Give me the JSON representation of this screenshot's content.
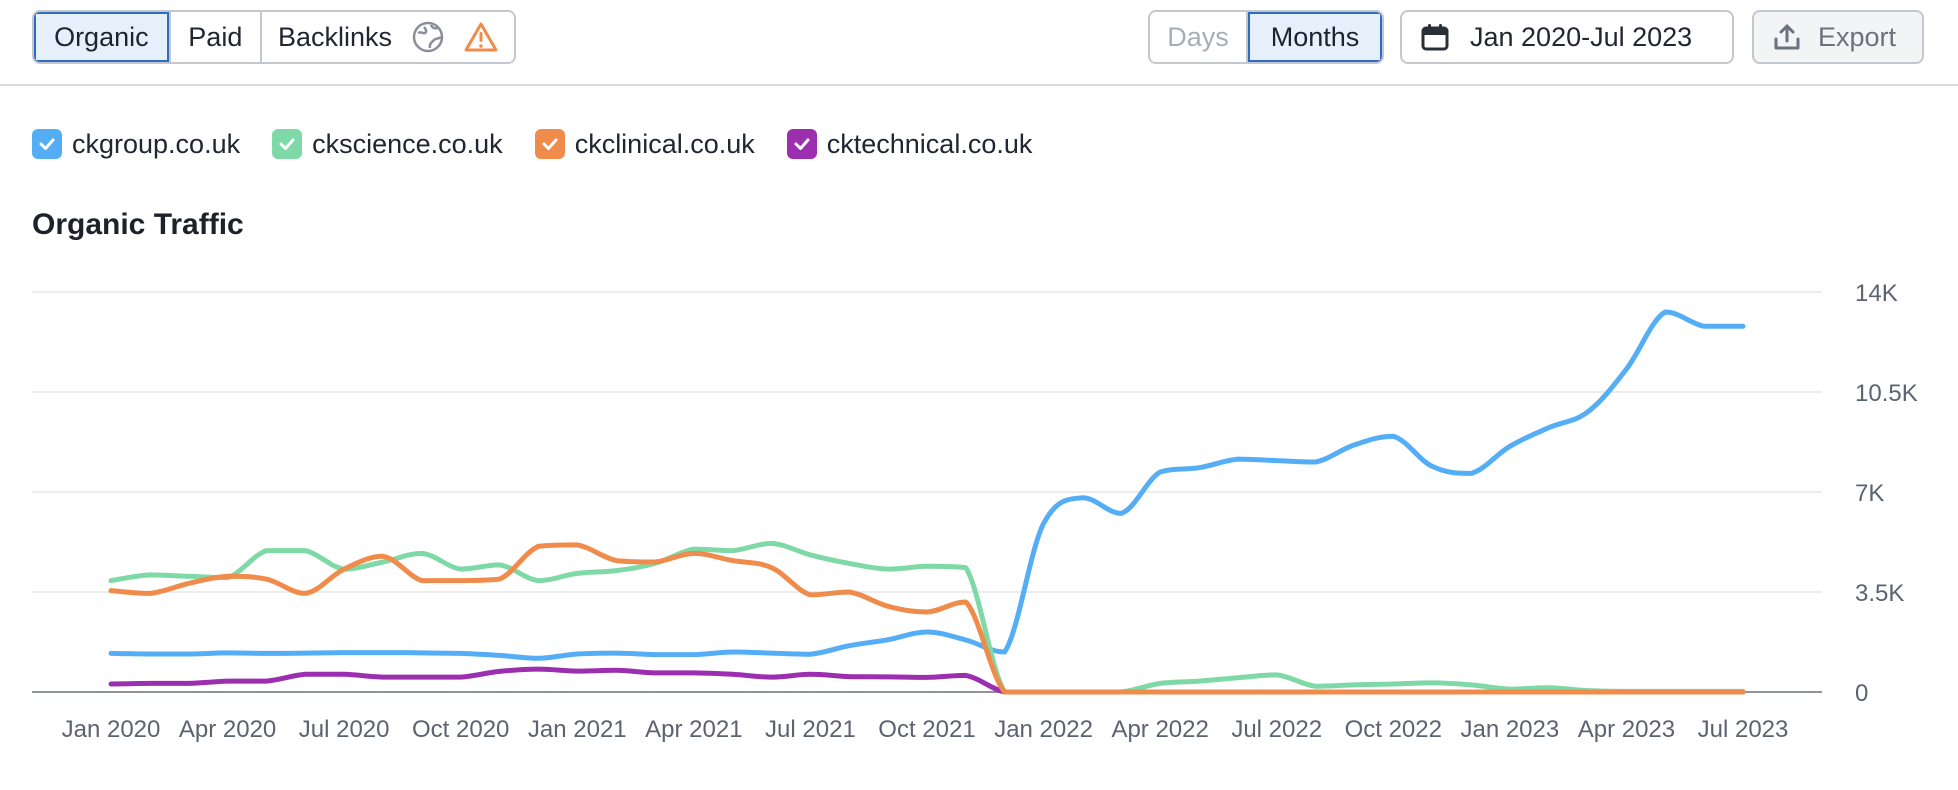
{
  "toolbar": {
    "tabs": [
      {
        "label": "Organic",
        "active": true
      },
      {
        "label": "Paid",
        "active": false
      },
      {
        "label": "Backlinks",
        "active": false
      }
    ],
    "backlinks_icons": [
      "globe-icon",
      "warning-icon"
    ],
    "period": [
      {
        "label": "Days",
        "active": false,
        "disabled": true
      },
      {
        "label": "Months",
        "active": true,
        "disabled": false
      }
    ],
    "date_range": "Jan 2020-Jul 2023",
    "export_label": "Export"
  },
  "legend": [
    {
      "domain": "ckgroup.co.uk",
      "color": "#55aef5",
      "checked": true
    },
    {
      "domain": "ckscience.co.uk",
      "color": "#7fd9a6",
      "checked": true
    },
    {
      "domain": "ckclinical.co.uk",
      "color": "#f08c4b",
      "checked": true
    },
    {
      "domain": "cktechnical.co.uk",
      "color": "#9c2eb0",
      "checked": true
    }
  ],
  "chart_title": "Organic Traffic",
  "chart_data": {
    "type": "line",
    "title": "Organic Traffic",
    "xlabel": "",
    "ylabel": "",
    "ylim": [
      0,
      14000
    ],
    "y_ticks": [
      0,
      3500,
      7000,
      10500,
      14000
    ],
    "y_tick_labels": [
      "0",
      "3.5K",
      "7K",
      "10.5K",
      "14K"
    ],
    "y_axis_side": "right",
    "grid": true,
    "x": [
      "Jan 2020",
      "Feb 2020",
      "Mar 2020",
      "Apr 2020",
      "May 2020",
      "Jun 2020",
      "Jul 2020",
      "Aug 2020",
      "Sep 2020",
      "Oct 2020",
      "Nov 2020",
      "Dec 2020",
      "Jan 2021",
      "Feb 2021",
      "Mar 2021",
      "Apr 2021",
      "May 2021",
      "Jun 2021",
      "Jul 2021",
      "Aug 2021",
      "Sep 2021",
      "Oct 2021",
      "Nov 2021",
      "Dec 2021",
      "Jan 2022",
      "Feb 2022",
      "Mar 2022",
      "Apr 2022",
      "May 2022",
      "Jun 2022",
      "Jul 2022",
      "Aug 2022",
      "Sep 2022",
      "Oct 2022",
      "Nov 2022",
      "Dec 2022",
      "Jan 2023",
      "Feb 2023",
      "Mar 2023",
      "Apr 2023",
      "May 2023",
      "Jun 2023",
      "Jul 2023"
    ],
    "x_tick_labels": [
      "Jan 2020",
      "Apr 2020",
      "Jul 2020",
      "Oct 2020",
      "Jan 2021",
      "Apr 2021",
      "Jul 2021",
      "Oct 2021",
      "Jan 2022",
      "Apr 2022",
      "Jul 2022",
      "Oct 2022",
      "Jan 2023",
      "Apr 2023",
      "Jul 2023"
    ],
    "series": [
      {
        "name": "ckgroup.co.uk",
        "color": "#55aef5",
        "values": [
          1350,
          1330,
          1330,
          1370,
          1350,
          1360,
          1380,
          1380,
          1370,
          1350,
          1280,
          1180,
          1330,
          1360,
          1310,
          1310,
          1400,
          1360,
          1320,
          1620,
          1830,
          2100,
          1820,
          1400,
          5900,
          6800,
          6250,
          7700,
          7850,
          8150,
          8100,
          8050,
          8650,
          8950,
          7900,
          7650,
          8600,
          9250,
          9800,
          11300,
          13300,
          12800,
          12800
        ]
      },
      {
        "name": "ckscience.co.uk",
        "color": "#7fd9a6",
        "values": [
          3900,
          4100,
          4050,
          4000,
          4950,
          4950,
          4300,
          4550,
          4850,
          4300,
          4450,
          3900,
          4150,
          4250,
          4500,
          5000,
          4950,
          5200,
          4800,
          4500,
          4300,
          4400,
          4350,
          0,
          0,
          0,
          0,
          300,
          380,
          500,
          600,
          200,
          250,
          280,
          320,
          250,
          100,
          150,
          50,
          20,
          20,
          20,
          20
        ]
      },
      {
        "name": "ckclinical.co.uk",
        "color": "#f08c4b",
        "values": [
          3550,
          3450,
          3800,
          4050,
          3950,
          3450,
          4300,
          4750,
          3900,
          3900,
          3950,
          5100,
          5150,
          4600,
          4550,
          4850,
          4600,
          4350,
          3400,
          3500,
          3000,
          2800,
          3150,
          0,
          0,
          0,
          0,
          0,
          0,
          0,
          0,
          0,
          0,
          0,
          0,
          0,
          0,
          0,
          0,
          0,
          0,
          0,
          0
        ]
      },
      {
        "name": "cktechnical.co.uk",
        "color": "#9c2eb0",
        "values": [
          280,
          300,
          300,
          380,
          380,
          620,
          620,
          520,
          520,
          520,
          720,
          800,
          730,
          760,
          670,
          670,
          620,
          520,
          620,
          540,
          530,
          510,
          580,
          0,
          0,
          0,
          0,
          0,
          0,
          0,
          0,
          0,
          0,
          0,
          0,
          0,
          0,
          0,
          0,
          0,
          0,
          0,
          0
        ]
      }
    ]
  }
}
